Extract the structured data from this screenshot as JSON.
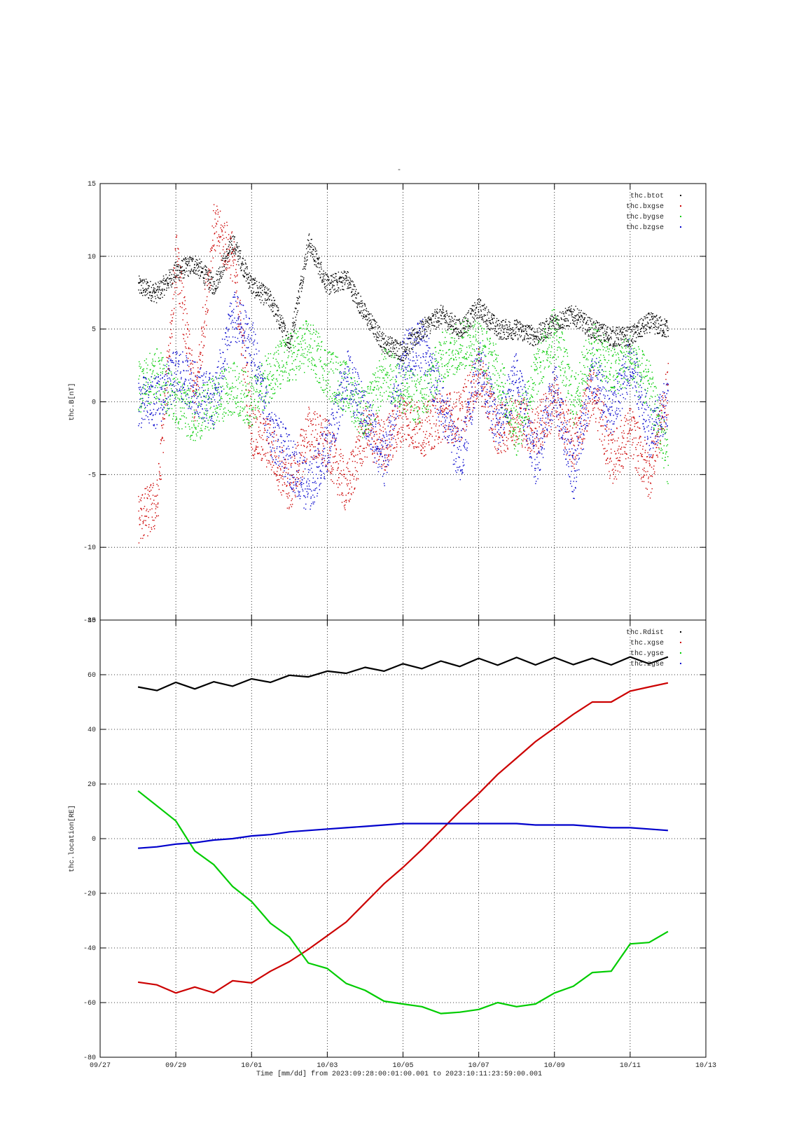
{
  "title": "-",
  "xlabel": "Time [mm/dd]  from 2023:09:28:00:01:00.001  to  2023:10:11:23:59:00.001",
  "x_ticks": [
    "09/27",
    "09/29",
    "10/01",
    "10/03",
    "10/05",
    "10/07",
    "10/09",
    "10/11",
    "10/13"
  ],
  "colors": {
    "black": "#000000",
    "red": "#cc0000",
    "green": "#00cc00",
    "blue": "#0000cc"
  },
  "chart_data": [
    {
      "type": "scatter",
      "ylabel": "thc.B[nT]",
      "xlim": [
        "09/27",
        "10/13"
      ],
      "ylim": [
        -15,
        15
      ],
      "y_ticks": [
        15,
        10,
        5,
        0,
        -5,
        -10,
        -15
      ],
      "grid": true,
      "legend_position": "top-right",
      "x_days": [
        1.0,
        1.5,
        2.0,
        2.5,
        3.0,
        3.5,
        4.0,
        4.5,
        5.0,
        5.5,
        6.0,
        6.5,
        7.0,
        7.5,
        8.0,
        8.5,
        9.0,
        9.5,
        10.0,
        10.5,
        11.0,
        11.5,
        12.0,
        12.5,
        13.0,
        13.5,
        14.0,
        14.5,
        15.0
      ],
      "series": [
        {
          "name": "thc.btot",
          "color": "#000000",
          "values": [
            8,
            7.5,
            9,
            9.5,
            8,
            11,
            8,
            7,
            4,
            11,
            8,
            8.5,
            6,
            4,
            3.5,
            5,
            6,
            5,
            6.5,
            5,
            5,
            4.5,
            5.5,
            6,
            5,
            4.5,
            4.5,
            5.5,
            5
          ]
        },
        {
          "name": "thc.bxgse",
          "color": "#cc0000",
          "values": [
            -8,
            -7,
            10,
            0,
            12,
            10,
            -2,
            -3,
            -6,
            -2,
            -3,
            -6,
            -2,
            -3,
            -1,
            -2,
            -1,
            -1,
            2,
            -2,
            -1,
            -2,
            0,
            -3,
            1,
            -4,
            -2,
            -5,
            1
          ]
        },
        {
          "name": "thc.bygse",
          "color": "#00cc00",
          "values": [
            1,
            2,
            0,
            -1,
            0,
            1,
            0,
            2,
            3,
            4,
            2,
            1,
            -1,
            2,
            1,
            0,
            3,
            4,
            4,
            2,
            -2,
            2,
            5,
            0,
            4,
            2,
            3,
            1,
            -4
          ]
        },
        {
          "name": "thc.bzgse",
          "color": "#0000cc",
          "values": [
            0,
            0,
            2,
            1,
            0,
            6,
            4,
            -2,
            -4,
            -6,
            -3,
            2,
            -1,
            -4,
            3,
            4,
            0,
            -4,
            3,
            -2,
            2,
            -4,
            1,
            -5,
            2,
            -1,
            3,
            -2,
            0
          ]
        }
      ]
    },
    {
      "type": "line",
      "ylabel": "thc.location[RE]",
      "xlim": [
        "09/27",
        "10/13"
      ],
      "ylim": [
        -80,
        80
      ],
      "y_ticks": [
        80,
        60,
        40,
        20,
        0,
        -20,
        -40,
        -60,
        -80
      ],
      "grid": true,
      "legend_position": "top-right",
      "x_days": [
        1.0,
        1.5,
        2.0,
        2.5,
        3.0,
        3.5,
        4.0,
        4.5,
        5.0,
        5.5,
        6.0,
        6.5,
        7.0,
        7.5,
        8.0,
        8.5,
        9.0,
        9.5,
        10.0,
        10.5,
        11.0,
        11.5,
        12.0,
        12.5,
        13.0,
        13.5,
        14.0,
        14.5,
        15.0
      ],
      "series": [
        {
          "name": "thc.Rdist",
          "color": "#000000",
          "values": [
            55.5,
            54.2,
            57.2,
            54.8,
            57.4,
            55.8,
            58.5,
            57.2,
            59.8,
            59.2,
            61.3,
            60.5,
            62.7,
            61.3,
            64.0,
            62.2,
            65.0,
            63.0,
            66.0,
            63.5,
            66.3,
            63.6,
            66.3,
            63.7,
            66.0,
            63.6,
            66.5,
            64.0,
            66.5
          ]
        },
        {
          "name": "thc.xgse",
          "color": "#cc0000",
          "values": [
            -52.5,
            -53.5,
            -56.5,
            -54.3,
            -56.4,
            -52.0,
            -52.8,
            -48.5,
            -45.0,
            -40.5,
            -35.5,
            -30.5,
            -23.5,
            -16.5,
            -10.5,
            -4.0,
            3.0,
            10.0,
            16.5,
            23.5,
            29.5,
            35.5,
            40.5,
            45.5,
            50.0,
            50.0,
            54.0,
            55.5,
            57.0
          ]
        },
        {
          "name": "thc.ygse",
          "color": "#00cc00",
          "values": [
            17.5,
            12.0,
            6.5,
            -4.5,
            -9.5,
            -17.5,
            -23.0,
            -31.0,
            -36.0,
            -45.5,
            -47.5,
            -53.0,
            -55.5,
            -59.5,
            -60.5,
            -61.5,
            -64.0,
            -63.5,
            -62.5,
            -60.0,
            -61.5,
            -60.5,
            -56.5,
            -54.0,
            -49.0,
            -48.5,
            -38.5,
            -38.0,
            -34.0
          ]
        },
        {
          "name": "thc.zgse",
          "color": "#0000cc",
          "values": [
            -3.5,
            -3.0,
            -2.0,
            -1.5,
            -0.5,
            0.0,
            1.0,
            1.5,
            2.5,
            3.0,
            3.5,
            4.0,
            4.5,
            5.0,
            5.5,
            5.5,
            5.5,
            5.5,
            5.5,
            5.5,
            5.5,
            5.0,
            5.0,
            5.0,
            4.5,
            4.0,
            4.0,
            3.5,
            3.0
          ]
        }
      ]
    }
  ]
}
